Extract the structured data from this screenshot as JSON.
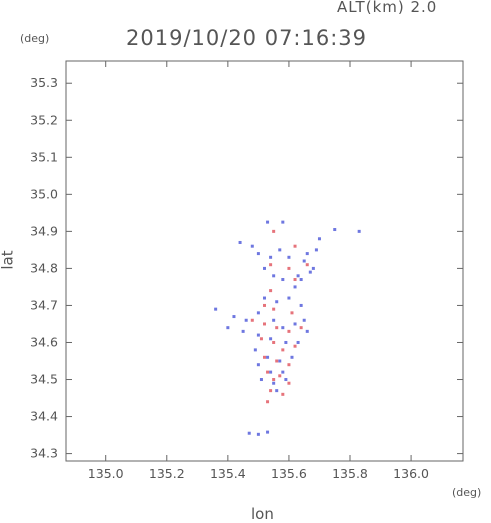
{
  "header": {
    "altitude_label": "ALT(km) 2.0",
    "timestamp": "2019/10/20 07:16:39"
  },
  "chart_data": {
    "type": "scatter",
    "title": "2019/10/20 07:16:39",
    "subtitle": "ALT(km) 2.0",
    "xlabel": "lon",
    "ylabel": "lat",
    "x_unit": "(deg)",
    "y_unit": "(deg)",
    "xlim": [
      134.87,
      136.17
    ],
    "ylim": [
      34.28,
      35.36
    ],
    "x_ticks": [
      135.0,
      135.2,
      135.4,
      135.6,
      135.8,
      136.0
    ],
    "x_tick_labels": [
      "135.0",
      "135.2",
      "135.4",
      "135.6",
      "135.8",
      "136.0"
    ],
    "y_ticks": [
      34.3,
      34.4,
      34.5,
      34.6,
      34.7,
      34.8,
      34.9,
      35.0,
      35.1,
      35.2,
      35.3
    ],
    "y_tick_labels": [
      "34.3",
      "34.4",
      "34.5",
      "34.6",
      "34.7",
      "34.8",
      "34.9",
      "35.0",
      "35.1",
      "35.2",
      "35.3"
    ],
    "grid": false,
    "colors": {
      "positive": "#e0505a",
      "negative": "#4a55d8",
      "frame": "#666666"
    },
    "series": [
      {
        "values": [
          [
            135.53,
            34.925
          ],
          [
            135.58,
            34.925
          ],
          [
            135.75,
            34.905
          ],
          [
            135.83,
            34.9
          ],
          [
            135.7,
            34.88
          ],
          [
            135.44,
            34.87
          ],
          [
            135.48,
            34.86
          ],
          [
            135.57,
            34.85
          ],
          [
            135.66,
            34.84
          ],
          [
            135.69,
            34.85
          ],
          [
            135.5,
            34.84
          ],
          [
            135.54,
            34.83
          ],
          [
            135.6,
            34.83
          ],
          [
            135.65,
            34.82
          ],
          [
            135.68,
            34.8
          ],
          [
            135.52,
            34.8
          ],
          [
            135.55,
            34.78
          ],
          [
            135.63,
            34.78
          ],
          [
            135.67,
            34.79
          ],
          [
            135.58,
            34.77
          ],
          [
            135.62,
            34.75
          ],
          [
            135.64,
            34.77
          ],
          [
            135.52,
            34.72
          ],
          [
            135.56,
            34.71
          ],
          [
            135.6,
            34.72
          ],
          [
            135.64,
            34.7
          ],
          [
            135.36,
            34.69
          ],
          [
            135.42,
            34.67
          ],
          [
            135.46,
            34.66
          ],
          [
            135.5,
            34.68
          ],
          [
            135.55,
            34.66
          ],
          [
            135.58,
            34.64
          ],
          [
            135.62,
            34.65
          ],
          [
            135.65,
            34.66
          ],
          [
            135.66,
            34.63
          ],
          [
            135.4,
            34.64
          ],
          [
            135.45,
            34.63
          ],
          [
            135.5,
            34.62
          ],
          [
            135.54,
            34.61
          ],
          [
            135.59,
            34.6
          ],
          [
            135.63,
            34.6
          ],
          [
            135.49,
            34.58
          ],
          [
            135.53,
            34.56
          ],
          [
            135.57,
            34.55
          ],
          [
            135.61,
            34.56
          ],
          [
            135.5,
            34.54
          ],
          [
            135.54,
            34.52
          ],
          [
            135.58,
            34.52
          ],
          [
            135.51,
            34.5
          ],
          [
            135.55,
            34.49
          ],
          [
            135.59,
            34.5
          ],
          [
            135.56,
            34.47
          ],
          [
            135.47,
            34.355
          ],
          [
            135.5,
            34.352
          ],
          [
            135.53,
            34.358
          ]
        ]
      },
      {
        "values": [
          [
            135.55,
            34.9
          ],
          [
            135.62,
            34.86
          ],
          [
            135.54,
            34.81
          ],
          [
            135.6,
            34.8
          ],
          [
            135.66,
            34.81
          ],
          [
            135.62,
            34.77
          ],
          [
            135.54,
            34.74
          ],
          [
            135.52,
            34.7
          ],
          [
            135.55,
            34.69
          ],
          [
            135.61,
            34.68
          ],
          [
            135.48,
            34.66
          ],
          [
            135.52,
            34.65
          ],
          [
            135.56,
            34.64
          ],
          [
            135.6,
            34.63
          ],
          [
            135.64,
            34.64
          ],
          [
            135.51,
            34.61
          ],
          [
            135.55,
            34.6
          ],
          [
            135.58,
            34.58
          ],
          [
            135.62,
            34.59
          ],
          [
            135.52,
            34.56
          ],
          [
            135.56,
            34.55
          ],
          [
            135.6,
            34.54
          ],
          [
            135.53,
            34.52
          ],
          [
            135.57,
            34.51
          ],
          [
            135.55,
            34.5
          ],
          [
            135.6,
            34.49
          ],
          [
            135.54,
            34.47
          ],
          [
            135.58,
            34.46
          ],
          [
            135.53,
            34.44
          ]
        ]
      }
    ]
  }
}
